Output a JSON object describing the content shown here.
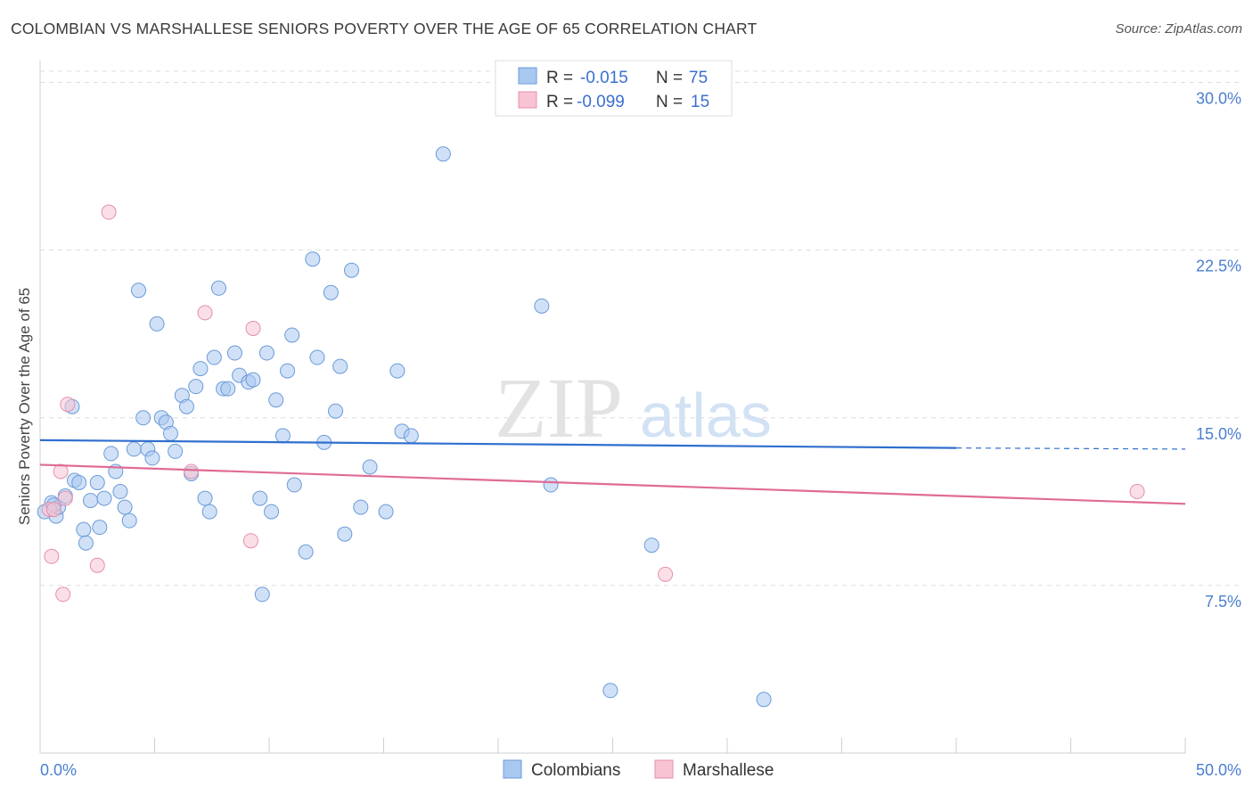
{
  "header": {
    "title": "COLOMBIAN VS MARSHALLESE SENIORS POVERTY OVER THE AGE OF 65 CORRELATION CHART",
    "source": "Source: ZipAtlas.com"
  },
  "watermark": {
    "zip": "ZIP",
    "atlas": "atlas"
  },
  "legend_top": {
    "rows": [
      {
        "r_label": "R =",
        "r_value": "-0.015",
        "n_label": "N =",
        "n_value": "75",
        "color": "#a9c8f0",
        "stroke": "#6a9bd8"
      },
      {
        "r_label": "R =",
        "r_value": "-0.099",
        "n_label": "N =",
        "n_value": "15",
        "color": "#f8c4d4",
        "stroke": "#e58fab"
      }
    ]
  },
  "legend_bottom": {
    "items": [
      {
        "label": "Colombians",
        "color": "#a9c8f0",
        "stroke": "#6a9bd8"
      },
      {
        "label": "Marshallese",
        "color": "#f8c4d4",
        "stroke": "#e58fab"
      }
    ]
  },
  "chart_data": {
    "type": "scatter",
    "title": "COLOMBIAN VS MARSHALLESE SENIORS POVERTY OVER THE AGE OF 65 CORRELATION CHART",
    "xlabel": "",
    "ylabel": "Seniors Poverty Over the Age of 65",
    "xlim": [
      0,
      50
    ],
    "ylim": [
      0,
      30.5
    ],
    "x_tick_labels": [
      "0.0%",
      "50.0%"
    ],
    "y_ticks": [
      7.5,
      15.0,
      22.5,
      30.0
    ],
    "y_tick_labels": [
      "7.5%",
      "15.0%",
      "22.5%",
      "30.0%"
    ],
    "grid": "horizontal dashed",
    "legend_position": "top-center",
    "series": [
      {
        "name": "Colombians",
        "color": "#a9c8f0",
        "stroke": "#6a9bd8",
        "r": "-0.015",
        "n": "75",
        "trend": {
          "x0": 0,
          "y0": 14.0,
          "x1": 40,
          "y1": 13.65,
          "dash_to": 50,
          "dash_y": 13.6
        },
        "points": [
          [
            0.2,
            10.8
          ],
          [
            0.5,
            11.2
          ],
          [
            0.7,
            10.6
          ],
          [
            0.8,
            11.0
          ],
          [
            1.1,
            11.5
          ],
          [
            1.4,
            15.5
          ],
          [
            1.5,
            12.2
          ],
          [
            1.7,
            12.1
          ],
          [
            1.9,
            10.0
          ],
          [
            2.0,
            9.4
          ],
          [
            2.2,
            11.3
          ],
          [
            2.5,
            12.1
          ],
          [
            2.6,
            10.1
          ],
          [
            2.8,
            11.4
          ],
          [
            3.1,
            13.4
          ],
          [
            3.3,
            12.6
          ],
          [
            3.5,
            11.7
          ],
          [
            3.7,
            11.0
          ],
          [
            3.9,
            10.4
          ],
          [
            4.1,
            13.6
          ],
          [
            4.3,
            20.7
          ],
          [
            4.5,
            15.0
          ],
          [
            4.7,
            13.6
          ],
          [
            4.9,
            13.2
          ],
          [
            5.1,
            19.2
          ],
          [
            5.3,
            15.0
          ],
          [
            5.5,
            14.8
          ],
          [
            5.7,
            14.3
          ],
          [
            5.9,
            13.5
          ],
          [
            6.2,
            16.0
          ],
          [
            6.4,
            15.5
          ],
          [
            6.6,
            12.5
          ],
          [
            6.8,
            16.4
          ],
          [
            7.0,
            17.2
          ],
          [
            7.2,
            11.4
          ],
          [
            7.4,
            10.8
          ],
          [
            7.6,
            17.7
          ],
          [
            7.8,
            20.8
          ],
          [
            8.0,
            16.3
          ],
          [
            8.2,
            16.3
          ],
          [
            8.5,
            17.9
          ],
          [
            8.7,
            16.9
          ],
          [
            9.1,
            16.6
          ],
          [
            9.3,
            16.7
          ],
          [
            9.6,
            11.4
          ],
          [
            9.7,
            7.1
          ],
          [
            9.9,
            17.9
          ],
          [
            10.1,
            10.8
          ],
          [
            10.3,
            15.8
          ],
          [
            10.6,
            14.2
          ],
          [
            10.8,
            17.1
          ],
          [
            11.0,
            18.7
          ],
          [
            11.1,
            12.0
          ],
          [
            11.6,
            9.0
          ],
          [
            11.9,
            22.1
          ],
          [
            12.1,
            17.7
          ],
          [
            12.4,
            13.9
          ],
          [
            12.7,
            20.6
          ],
          [
            12.9,
            15.3
          ],
          [
            13.1,
            17.3
          ],
          [
            13.3,
            9.8
          ],
          [
            13.6,
            21.6
          ],
          [
            14.0,
            11.0
          ],
          [
            14.4,
            12.8
          ],
          [
            15.1,
            10.8
          ],
          [
            15.6,
            17.1
          ],
          [
            15.8,
            14.4
          ],
          [
            16.2,
            14.2
          ],
          [
            17.6,
            26.8
          ],
          [
            21.9,
            20.0
          ],
          [
            22.3,
            12.0
          ],
          [
            26.7,
            9.3
          ],
          [
            24.9,
            2.8
          ],
          [
            31.6,
            2.4
          ],
          [
            0.6,
            11.1
          ]
        ]
      },
      {
        "name": "Marshallese",
        "color": "#f8c4d4",
        "stroke": "#e58fab",
        "r": "-0.099",
        "n": "15",
        "trend": {
          "x0": 0,
          "y0": 12.9,
          "x1": 50,
          "y1": 11.15
        },
        "points": [
          [
            0.4,
            10.9
          ],
          [
            0.5,
            8.8
          ],
          [
            0.9,
            12.6
          ],
          [
            1.0,
            7.1
          ],
          [
            1.1,
            11.4
          ],
          [
            1.2,
            15.6
          ],
          [
            2.5,
            8.4
          ],
          [
            3.0,
            24.2
          ],
          [
            7.2,
            19.7
          ],
          [
            6.6,
            12.6
          ],
          [
            9.2,
            9.5
          ],
          [
            9.3,
            19.0
          ],
          [
            27.3,
            8.0
          ],
          [
            47.9,
            11.7
          ],
          [
            0.6,
            10.9
          ]
        ]
      }
    ]
  }
}
